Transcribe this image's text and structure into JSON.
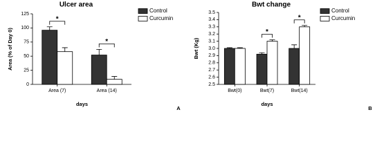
{
  "chart_data": [
    {
      "type": "bar",
      "title": "Ulcer area",
      "panel_label": "A",
      "y_label": "Area (% of Day 0)",
      "x_label": "days",
      "categories": [
        "Area (7)",
        "Area (14)"
      ],
      "series": [
        {
          "name": "Control",
          "color": "#333333",
          "values": [
            96,
            52
          ],
          "errors": [
            6,
            10
          ]
        },
        {
          "name": "Curcumin",
          "color": "#ffffff",
          "values": [
            58,
            9
          ],
          "errors": [
            7,
            5
          ]
        }
      ],
      "significance": [
        "*",
        "*"
      ],
      "ylim": [
        0,
        125
      ],
      "yticks": [
        0,
        25,
        50,
        75,
        100,
        125
      ]
    },
    {
      "type": "bar",
      "title": "Bwt  change",
      "panel_label": "B",
      "y_label": "Bwt (Kg)",
      "x_label": "days",
      "categories": [
        "Bwt(0)",
        "Bwt(7)",
        "Bwt(14)"
      ],
      "series": [
        {
          "name": "Control",
          "color": "#333333",
          "values": [
            3.0,
            2.92,
            3.0
          ],
          "errors": [
            0.01,
            0.02,
            0.05
          ]
        },
        {
          "name": "Curcumin",
          "color": "#ffffff",
          "values": [
            3.0,
            3.1,
            3.3
          ],
          "errors": [
            0.01,
            0.02,
            0.02
          ]
        }
      ],
      "significance": [
        null,
        "*",
        "*"
      ],
      "ylim": [
        2.5,
        3.5
      ],
      "yticks": [
        2.5,
        2.6,
        2.7,
        2.8,
        2.9,
        {
          "value": 3,
          "label": "3.0"
        },
        3.1,
        3.2,
        3.3,
        3.4,
        3.5
      ]
    }
  ]
}
